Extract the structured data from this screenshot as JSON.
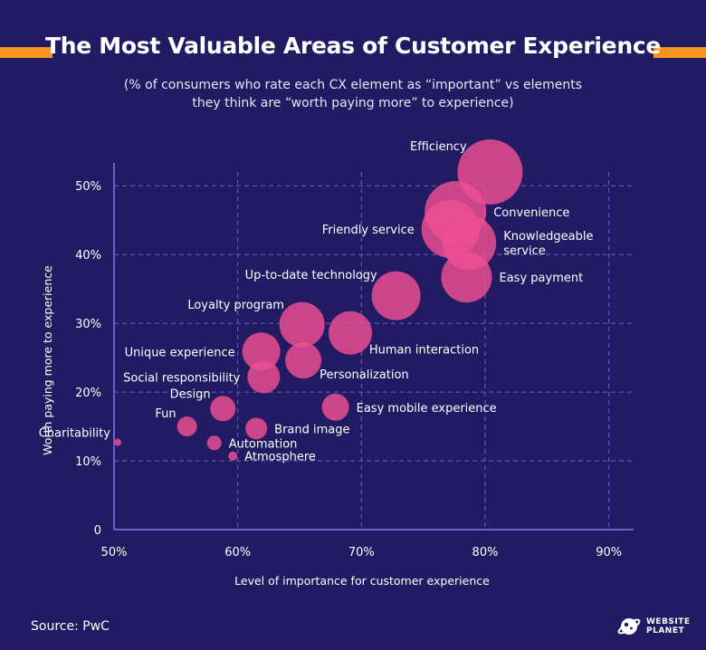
{
  "title": "The Most Valuable Areas of Customer Experience",
  "subtitle_line1": "(% of consumers who rate each CX element as “important” vs elements",
  "subtitle_line2": "they think are “worth paying more” to experience)",
  "source": "Source: PwC",
  "logo": {
    "line1": "WEBSITE",
    "line2": "PLANET",
    "icon": "planet-icon"
  },
  "colors": {
    "background": "#221a63",
    "accent": "#f7941d",
    "bubble": "#ef4f93",
    "axis": "#6f5fc6",
    "grid": "#6f5fc6"
  },
  "chart_data": {
    "type": "scatter",
    "xlabel": "Level of importance for customer experience",
    "ylabel": "Worth paying more to experience",
    "xlim": [
      50,
      92
    ],
    "ylim": [
      0,
      52
    ],
    "x_ticks": [
      {
        "value": 50,
        "label": "50%"
      },
      {
        "value": 60,
        "label": "60%"
      },
      {
        "value": 70,
        "label": "70%"
      },
      {
        "value": 80,
        "label": "80%"
      },
      {
        "value": 90,
        "label": "90%"
      }
    ],
    "y_ticks": [
      {
        "value": 0,
        "label": "0"
      },
      {
        "value": 10,
        "label": "10%"
      },
      {
        "value": 20,
        "label": "20%"
      },
      {
        "value": 30,
        "label": "30%"
      },
      {
        "value": 40,
        "label": "40%"
      },
      {
        "value": 50,
        "label": "50%"
      }
    ],
    "grid": true,
    "points": [
      {
        "label": "Efficiency",
        "x": 80.4,
        "y": 52.0,
        "size": 36,
        "label_pos": "left-up"
      },
      {
        "label": "Convenience",
        "x": 77.6,
        "y": 46.2,
        "size": 34,
        "label_pos": "right"
      },
      {
        "label": "Friendly service",
        "x": 77.2,
        "y": 43.7,
        "size": 32,
        "label_pos": "left"
      },
      {
        "label": "Knowledgeable service",
        "x": 78.7,
        "y": 41.7,
        "size": 30,
        "label_pos": "right"
      },
      {
        "label": "Easy payment",
        "x": 78.5,
        "y": 36.7,
        "size": 28,
        "label_pos": "right"
      },
      {
        "label": "Up-to-date technology",
        "x": 72.8,
        "y": 34.0,
        "size": 27,
        "label_pos": "left-up"
      },
      {
        "label": "Human interaction",
        "x": 69.1,
        "y": 28.6,
        "size": 24,
        "label_pos": "right-down"
      },
      {
        "label": "Loyalty program",
        "x": 65.2,
        "y": 29.8,
        "size": 25,
        "label_pos": "left-up"
      },
      {
        "label": "Personalization",
        "x": 65.3,
        "y": 24.6,
        "size": 20,
        "label_pos": "right-down"
      },
      {
        "label": "Unique experience",
        "x": 61.9,
        "y": 25.9,
        "size": 21,
        "label_pos": "left"
      },
      {
        "label": "Social responsibility",
        "x": 62.1,
        "y": 22.2,
        "size": 18,
        "label_pos": "left"
      },
      {
        "label": "Design",
        "x": 58.8,
        "y": 17.6,
        "size": 14,
        "label_pos": "left-up"
      },
      {
        "label": "Easy mobile experience",
        "x": 67.9,
        "y": 17.8,
        "size": 15,
        "label_pos": "right"
      },
      {
        "label": "Fun",
        "x": 55.9,
        "y": 15.0,
        "size": 11,
        "label_pos": "left-up"
      },
      {
        "label": "Brand image",
        "x": 61.5,
        "y": 14.7,
        "size": 12,
        "label_pos": "right"
      },
      {
        "label": "Charitability",
        "x": 50.3,
        "y": 12.7,
        "size": 4,
        "label_pos": "left-up"
      },
      {
        "label": "Automation",
        "x": 58.1,
        "y": 12.6,
        "size": 8,
        "label_pos": "right"
      },
      {
        "label": "Atmosphere",
        "x": 59.6,
        "y": 10.7,
        "size": 5,
        "label_pos": "right"
      }
    ]
  }
}
